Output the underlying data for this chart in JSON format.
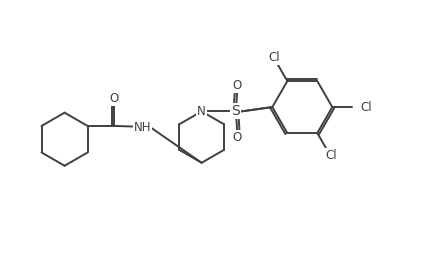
{
  "background_color": "#ffffff",
  "line_color": "#404040",
  "text_color": "#404040",
  "font_size": 8.5,
  "line_width": 1.4,
  "figsize": [
    4.29,
    2.72
  ],
  "dpi": 100,
  "xlim": [
    0,
    10
  ],
  "ylim": [
    0,
    6.35
  ]
}
